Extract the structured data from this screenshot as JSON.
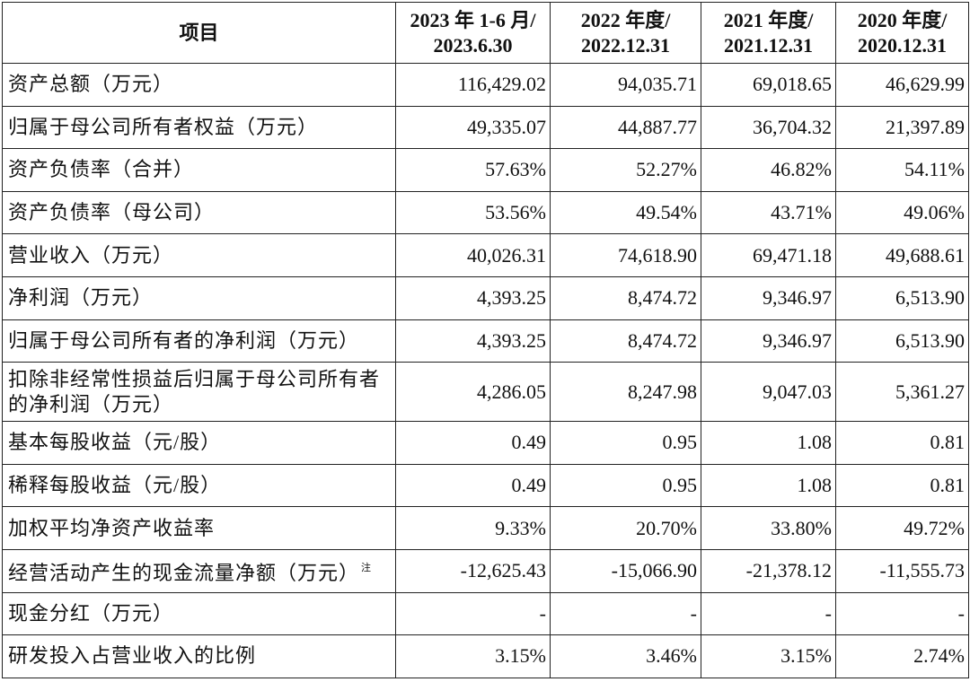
{
  "table": {
    "header": [
      [
        "项目"
      ],
      [
        "2023 年 1-6 月/",
        "2023.6.30"
      ],
      [
        "2022 年度/",
        "2022.12.31"
      ],
      [
        "2021 年度/",
        "2021.12.31"
      ],
      [
        "2020 年度/",
        "2020.12.31"
      ]
    ],
    "rows": [
      {
        "label": "资产总额（万元）",
        "values": [
          "116,429.02",
          "94,035.71",
          "69,018.65",
          "46,629.99"
        ]
      },
      {
        "label": "归属于母公司所有者权益（万元）",
        "values": [
          "49,335.07",
          "44,887.77",
          "36,704.32",
          "21,397.89"
        ]
      },
      {
        "label": "资产负债率（合并）",
        "values": [
          "57.63%",
          "52.27%",
          "46.82%",
          "54.11%"
        ]
      },
      {
        "label": "资产负债率（母公司）",
        "values": [
          "53.56%",
          "49.54%",
          "43.71%",
          "49.06%"
        ]
      },
      {
        "label": "营业收入（万元）",
        "values": [
          "40,026.31",
          "74,618.90",
          "69,471.18",
          "49,688.61"
        ]
      },
      {
        "label": "净利润（万元）",
        "values": [
          "4,393.25",
          "8,474.72",
          "9,346.97",
          "6,513.90"
        ]
      },
      {
        "label": "归属于母公司所有者的净利润（万元）",
        "values": [
          "4,393.25",
          "8,474.72",
          "9,346.97",
          "6,513.90"
        ]
      },
      {
        "label": "扣除非经常性损益后归属于母公司所有者的净利润（万元）",
        "values": [
          "4,286.05",
          "8,247.98",
          "9,047.03",
          "5,361.27"
        ]
      },
      {
        "label": "基本每股收益（元/股）",
        "values": [
          "0.49",
          "0.95",
          "1.08",
          "0.81"
        ]
      },
      {
        "label": "稀释每股收益（元/股）",
        "values": [
          "0.49",
          "0.95",
          "1.08",
          "0.81"
        ]
      },
      {
        "label": "加权平均净资产收益率",
        "values": [
          "9.33%",
          "20.70%",
          "33.80%",
          "49.72%"
        ]
      },
      {
        "label": "经营活动产生的现金流量净额（万元）",
        "note": "注",
        "values": [
          "-12,625.43",
          "-15,066.90",
          "-21,378.12",
          "-11,555.73"
        ]
      },
      {
        "label": "现金分红（万元）",
        "values": [
          "-",
          "-",
          "-",
          "-"
        ]
      },
      {
        "label": "研发投入占营业收入的比例",
        "values": [
          "3.15%",
          "3.46%",
          "3.15%",
          "2.74%"
        ]
      }
    ]
  }
}
